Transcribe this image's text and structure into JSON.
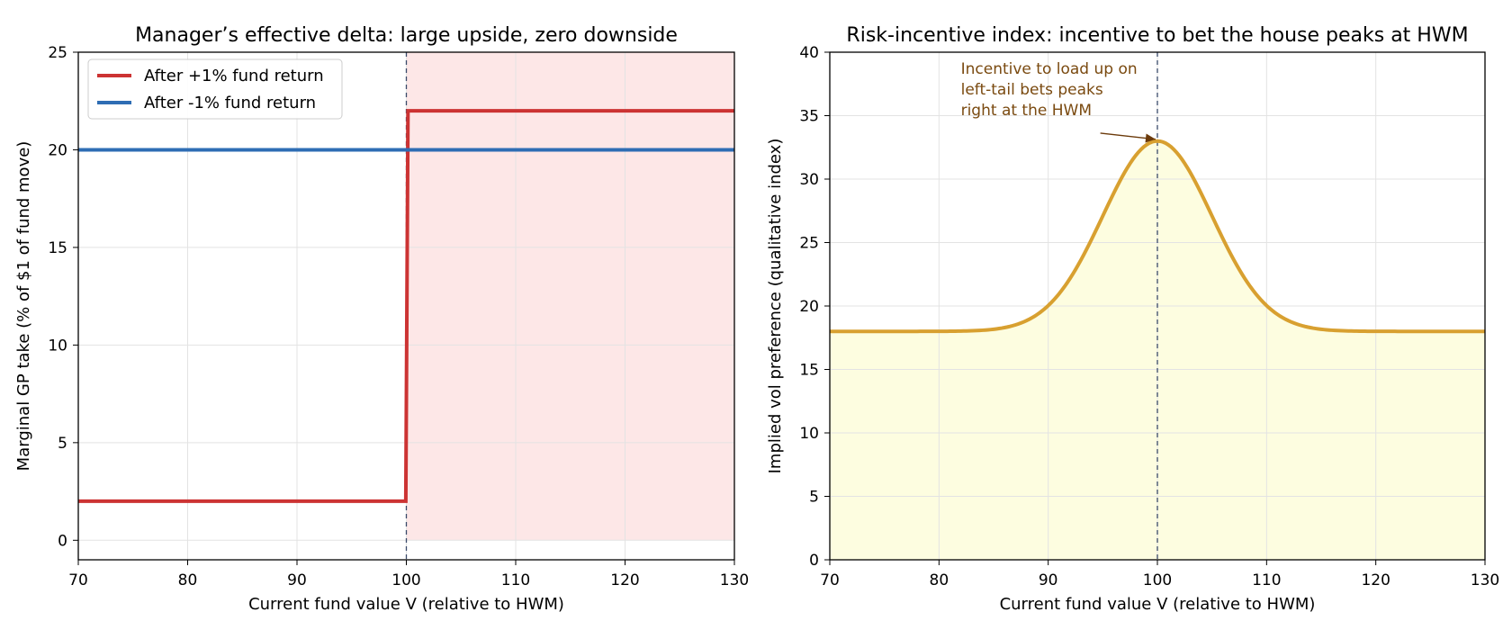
{
  "chart_data": [
    {
      "type": "line",
      "title": "Manager’s effective delta: large upside, zero downside",
      "xlabel": "Current fund value V (relative to HWM)",
      "ylabel": "Marginal GP take (% of $1 of fund move)",
      "xlim": [
        70,
        130
      ],
      "ylim": [
        -1,
        25
      ],
      "xticks": [
        70,
        80,
        90,
        100,
        110,
        120,
        130
      ],
      "yticks": [
        0,
        5,
        10,
        15,
        20,
        25
      ],
      "grid": true,
      "legend": "upper-left",
      "hwm": 100,
      "shade_region": {
        "x": [
          100,
          130
        ],
        "y": [
          0,
          25
        ],
        "color": "#fde7e7"
      },
      "series": [
        {
          "name": "After +1% fund return",
          "color": "#cc3333",
          "x": [
            70,
            99.95,
            100.15,
            130
          ],
          "y": [
            2,
            2,
            22,
            22
          ]
        },
        {
          "name": "After -1% fund return",
          "color": "#2e6db4",
          "x": [
            70,
            130
          ],
          "y": [
            20,
            20
          ]
        }
      ]
    },
    {
      "type": "area",
      "title": "Risk-incentive index: incentive to bet the house peaks at HWM",
      "xlabel": "Current fund value V (relative to HWM)",
      "ylabel": "Implied vol preference (qualitative index)",
      "xlim": [
        70,
        130
      ],
      "ylim": [
        0,
        40
      ],
      "xticks": [
        70,
        80,
        90,
        100,
        110,
        120,
        130
      ],
      "yticks": [
        0,
        5,
        10,
        15,
        20,
        25,
        30,
        35,
        40
      ],
      "grid": true,
      "hwm": 100,
      "fill_color": "#fdfde0",
      "line_color": "#d8a030",
      "curve": {
        "baseline": 18,
        "peak": 33,
        "center": 100,
        "width": 5
      },
      "annotation": {
        "lines": [
          "Incentive to load up on",
          "left-tail bets peaks",
          "right at the HWM"
        ],
        "point": [
          100,
          33
        ],
        "text_at": [
          82,
          38.3
        ]
      }
    }
  ]
}
